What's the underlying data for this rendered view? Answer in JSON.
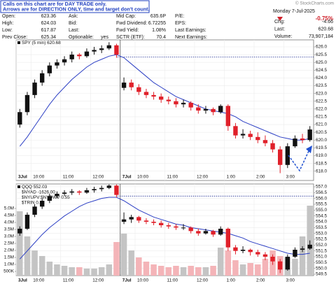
{
  "header": {
    "notice": [
      "Calls on this chart are for DAY TRADE only.",
      "Arrows are for DIRECTION ONLY, time and target don't count."
    ],
    "watermark": "© StockCharts.com",
    "stats": [
      [
        {
          "label": "Open:",
          "value": "623.36"
        },
        {
          "label": "Ask:"
        },
        {
          "label": "Mid Cap:",
          "value": "635.6P"
        },
        {
          "label": "P/E:"
        }
      ],
      [
        {
          "label": "High:",
          "value": "624.03"
        },
        {
          "label": "Bid:"
        },
        {
          "label": "Fwd Dividend:",
          "value": "6.72255"
        },
        {
          "label": "EPS:"
        }
      ],
      [
        {
          "label": "Low:",
          "value": "617.87"
        },
        {
          "label": "Last:"
        },
        {
          "label": "Fwd Yield:",
          "value": "1.08%"
        },
        {
          "label": "Last Earnings:"
        }
      ],
      [
        {
          "label": "Prev Close:",
          "value": "625.34"
        },
        {
          "label": "Optionable:",
          "value": "yes"
        },
        {
          "label": "SCTR (ETF):",
          "value": "70.4"
        },
        {
          "label": "Next Earnings:"
        }
      ]
    ],
    "date": "Monday 7-Jul-2025",
    "change_pct": "-0.75%",
    "summary": [
      {
        "label": "Chg:",
        "value": "-4.66"
      },
      {
        "label": "Last:",
        "value": "620.68"
      },
      {
        "label": "Volume:",
        "value": "73,907,184"
      }
    ]
  },
  "chart_data": [
    {
      "type": "candlestick",
      "title": "SPY (5 min) 620.68",
      "categories": [
        "3Jul",
        null,
        "10:00",
        null,
        null,
        null,
        "11:00",
        null,
        null,
        null,
        "12:00",
        null,
        null,
        null,
        "7Jul",
        null,
        "10:00",
        null,
        null,
        null,
        "11:00",
        null,
        null,
        null,
        "12:00",
        null,
        null,
        null,
        "1:00",
        null,
        null,
        null,
        "2:00",
        null,
        null,
        null,
        "3:00",
        null,
        null,
        null
      ],
      "open": [
        621.0,
        621.8,
        622.9,
        623.7,
        624.3,
        624.8,
        625.0,
        625.2,
        625.5,
        625.4,
        625.7,
        625.8,
        625.9,
        626.1,
        623.36,
        623.7,
        623.4,
        623.1,
        622.9,
        622.8,
        622.6,
        622.5,
        622.3,
        622.4,
        622.1,
        621.9,
        622.0,
        621.8,
        622.2,
        620.9,
        620.3,
        620.4,
        620.2,
        620.0,
        619.8,
        619.4,
        618.4,
        619.6,
        620.1,
        620.0
      ],
      "high": [
        622.0,
        623.1,
        623.9,
        624.5,
        625.0,
        625.2,
        625.4,
        625.7,
        625.6,
        625.9,
        626.0,
        626.1,
        626.3,
        626.2,
        624.03,
        623.9,
        623.6,
        623.3,
        623.1,
        623.0,
        622.8,
        622.7,
        622.6,
        622.5,
        622.3,
        622.2,
        622.1,
        622.3,
        622.3,
        621.1,
        620.7,
        620.6,
        620.5,
        620.3,
        620.0,
        619.6,
        619.8,
        620.3,
        620.4,
        620.9
      ],
      "low": [
        620.8,
        621.6,
        622.7,
        623.5,
        624.1,
        624.6,
        624.8,
        625.0,
        625.2,
        625.3,
        625.5,
        625.6,
        625.8,
        625.3,
        623.2,
        623.2,
        622.9,
        622.7,
        622.6,
        622.4,
        622.3,
        622.1,
        622.1,
        621.9,
        621.7,
        621.7,
        621.6,
        621.7,
        620.6,
        620.1,
        620.1,
        620.0,
        619.8,
        619.6,
        619.2,
        617.87,
        618.2,
        619.5,
        619.8,
        619.9
      ],
      "close": [
        621.8,
        622.9,
        623.7,
        624.3,
        624.8,
        625.0,
        625.2,
        625.5,
        625.4,
        625.7,
        625.8,
        625.9,
        626.1,
        625.5,
        623.7,
        623.4,
        623.1,
        622.9,
        622.8,
        622.6,
        622.5,
        622.3,
        622.4,
        622.1,
        621.9,
        622.0,
        621.8,
        622.2,
        620.9,
        620.3,
        620.4,
        620.2,
        620.0,
        619.8,
        619.4,
        618.4,
        619.6,
        620.1,
        620.0,
        620.68
      ],
      "up_color": "#111111",
      "down_color": "#e0202a",
      "ma": {
        "color": "#2c3fc4",
        "values": [
          619.6,
          620.2,
          620.9,
          621.6,
          622.3,
          622.9,
          623.4,
          623.9,
          624.3,
          624.7,
          625.0,
          625.2,
          625.4,
          625.5,
          625.3,
          624.9,
          624.5,
          624.1,
          623.7,
          623.4,
          623.1,
          622.8,
          622.6,
          622.4,
          622.2,
          622.0,
          621.9,
          621.8,
          621.7,
          621.5,
          621.2,
          621.0,
          620.8,
          620.6,
          620.4,
          620.2,
          620.1,
          620.0,
          620.0,
          620.1
        ]
      },
      "reference_line": 625.34,
      "ylim": [
        617.4,
        626.45
      ],
      "yticks": [
        {
          "value": 626,
          "label": "626.0"
        },
        {
          "value": 625.5,
          "label": "625.5"
        },
        {
          "value": 625,
          "label": "625.0"
        },
        {
          "value": 624.5,
          "label": "624.5"
        },
        {
          "value": 624,
          "label": "624.0"
        },
        {
          "value": 623.5,
          "label": "623.5"
        },
        {
          "value": 623,
          "label": "623.0"
        },
        {
          "value": 622.5,
          "label": "622.5"
        },
        {
          "value": 622,
          "label": "622.0"
        },
        {
          "value": 621.5,
          "label": "621.5"
        },
        {
          "value": 621,
          "label": "621.0"
        },
        {
          "value": 620.5,
          "label": "620.5"
        },
        {
          "value": 620,
          "label": "620.0"
        },
        {
          "value": 619.5,
          "label": "619.5"
        },
        {
          "value": 619,
          "label": "619.0"
        },
        {
          "value": 618.5,
          "label": "618.5"
        },
        {
          "value": 618,
          "label": "618.0"
        }
      ],
      "grid": true
    },
    {
      "type": "candlestick",
      "title": "QQQ 552.03",
      "legend": [
        "$NYAD -1626.00",
        "$NYUPV:$NYDWV 0.55",
        "$TRIN 0.48"
      ],
      "categories": [
        "3Jul",
        null,
        "10:00",
        null,
        null,
        null,
        "11:00",
        null,
        null,
        null,
        "12:00",
        null,
        null,
        null,
        "7Jul",
        null,
        "10:00",
        null,
        null,
        null,
        "11:00",
        null,
        null,
        null,
        "12:00",
        null,
        null,
        null,
        "1:00",
        null,
        null,
        null,
        "2:00",
        null,
        null,
        null,
        "3:00",
        null,
        null,
        null
      ],
      "open": [
        553.0,
        553.4,
        554.6,
        555.3,
        555.8,
        556.2,
        556.4,
        556.5,
        556.6,
        556.5,
        556.7,
        556.8,
        556.9,
        557.1,
        554.0,
        554.2,
        554.4,
        554.1,
        554.0,
        553.9,
        553.7,
        553.6,
        553.5,
        553.5,
        553.2,
        553.0,
        553.2,
        552.9,
        553.4,
        551.8,
        551.5,
        551.6,
        551.4,
        551.2,
        551.0,
        550.6,
        549.9,
        551.0,
        551.6,
        551.7
      ],
      "high": [
        553.6,
        554.8,
        555.5,
        556.0,
        556.4,
        556.6,
        556.7,
        556.8,
        556.7,
        556.9,
        557.0,
        557.1,
        557.2,
        557.2,
        554.8,
        554.6,
        554.5,
        554.3,
        554.2,
        554.1,
        553.9,
        553.8,
        553.8,
        553.6,
        553.4,
        553.4,
        553.3,
        553.6,
        553.5,
        552.0,
        551.9,
        551.7,
        551.6,
        551.4,
        551.2,
        550.8,
        551.2,
        551.8,
        551.9,
        552.4
      ],
      "low": [
        552.8,
        553.3,
        554.4,
        555.1,
        555.6,
        556.0,
        556.2,
        556.3,
        556.3,
        556.4,
        556.5,
        556.6,
        556.8,
        556.1,
        553.8,
        553.9,
        553.9,
        553.8,
        553.7,
        553.5,
        553.4,
        553.3,
        553.3,
        553.0,
        552.8,
        552.9,
        552.7,
        552.8,
        551.5,
        551.2,
        551.3,
        551.1,
        551.0,
        550.7,
        550.3,
        549.6,
        549.8,
        550.9,
        551.4,
        551.6
      ],
      "close": [
        553.4,
        554.6,
        555.3,
        555.8,
        556.2,
        556.4,
        556.5,
        556.6,
        556.5,
        556.7,
        556.8,
        556.9,
        557.1,
        556.3,
        554.2,
        554.4,
        554.1,
        554.0,
        553.9,
        553.7,
        553.6,
        553.5,
        553.5,
        553.2,
        553.0,
        553.2,
        552.9,
        553.4,
        551.8,
        551.5,
        551.6,
        551.4,
        551.2,
        551.0,
        550.6,
        549.9,
        551.0,
        551.6,
        551.7,
        552.03
      ],
      "up_color": "#111111",
      "down_color": "#e0202a",
      "ma": {
        "color": "#2c3fc4",
        "values": [
          550.8,
          551.5,
          552.2,
          552.9,
          553.5,
          554.0,
          554.5,
          554.9,
          555.3,
          555.6,
          555.8,
          556.0,
          556.1,
          556.1,
          555.8,
          555.4,
          555.0,
          554.7,
          554.4,
          554.2,
          554.0,
          553.8,
          553.7,
          553.5,
          553.4,
          553.3,
          553.2,
          553.1,
          553.0,
          552.8,
          552.6,
          552.3,
          552.1,
          551.9,
          551.7,
          551.5,
          551.3,
          551.2,
          551.2,
          551.3
        ]
      },
      "volume": [
        4800000,
        3000000,
        2000000,
        1600000,
        1200000,
        1000000,
        900000,
        800000,
        800000,
        700000,
        700000,
        800000,
        1000000,
        2600000,
        3200000,
        2000000,
        1500000,
        1200000,
        1000000,
        900000,
        800000,
        900000,
        800000,
        900000,
        800000,
        800000,
        900000,
        2200000,
        2000000,
        1300000,
        1000000,
        1100000,
        1000000,
        1400000,
        2000000,
        1600000,
        1500000,
        1400000,
        3000000,
        5200000
      ],
      "volume_color_up": "#c4c4c4",
      "volume_color_down": "#f4b4b8",
      "vlim": [
        200000,
        6750000
      ],
      "vticks": [
        {
          "value": 5000000,
          "label": "5.0M"
        },
        {
          "value": 4500000,
          "label": "4.5M"
        },
        {
          "value": 4000000,
          "label": "4.0M"
        },
        {
          "value": 3500000,
          "label": "3.5M"
        },
        {
          "value": 3000000,
          "label": "3.0M"
        },
        {
          "value": 2500000,
          "label": "2.5M"
        },
        {
          "value": 2000000,
          "label": "2.0M"
        },
        {
          "value": 1500000,
          "label": "1.5M"
        },
        {
          "value": 1000000,
          "label": "1.0M"
        },
        {
          "value": 500000,
          "label": "500K"
        }
      ],
      "reference_line": 556.2,
      "ylim": [
        549.38,
        557.24
      ],
      "yticks": [
        {
          "value": 557,
          "label": "557.0"
        },
        {
          "value": 556.5,
          "label": "556.5"
        },
        {
          "value": 556,
          "label": "556.0"
        },
        {
          "value": 555.5,
          "label": "555.5"
        },
        {
          "value": 555,
          "label": "555.0"
        },
        {
          "value": 554.5,
          "label": "554.5"
        },
        {
          "value": 554,
          "label": "554.0"
        },
        {
          "value": 553.5,
          "label": "553.5"
        },
        {
          "value": 553,
          "label": "553.0"
        },
        {
          "value": 552.5,
          "label": "552.5"
        },
        {
          "value": 552,
          "label": "552.0"
        },
        {
          "value": 551.5,
          "label": "551.5"
        },
        {
          "value": 551,
          "label": "551.0"
        },
        {
          "value": 550.5,
          "label": "550.5"
        },
        {
          "value": 550,
          "label": "550.0"
        },
        {
          "value": 549.5,
          "label": "549.5"
        }
      ],
      "grid": true
    }
  ]
}
